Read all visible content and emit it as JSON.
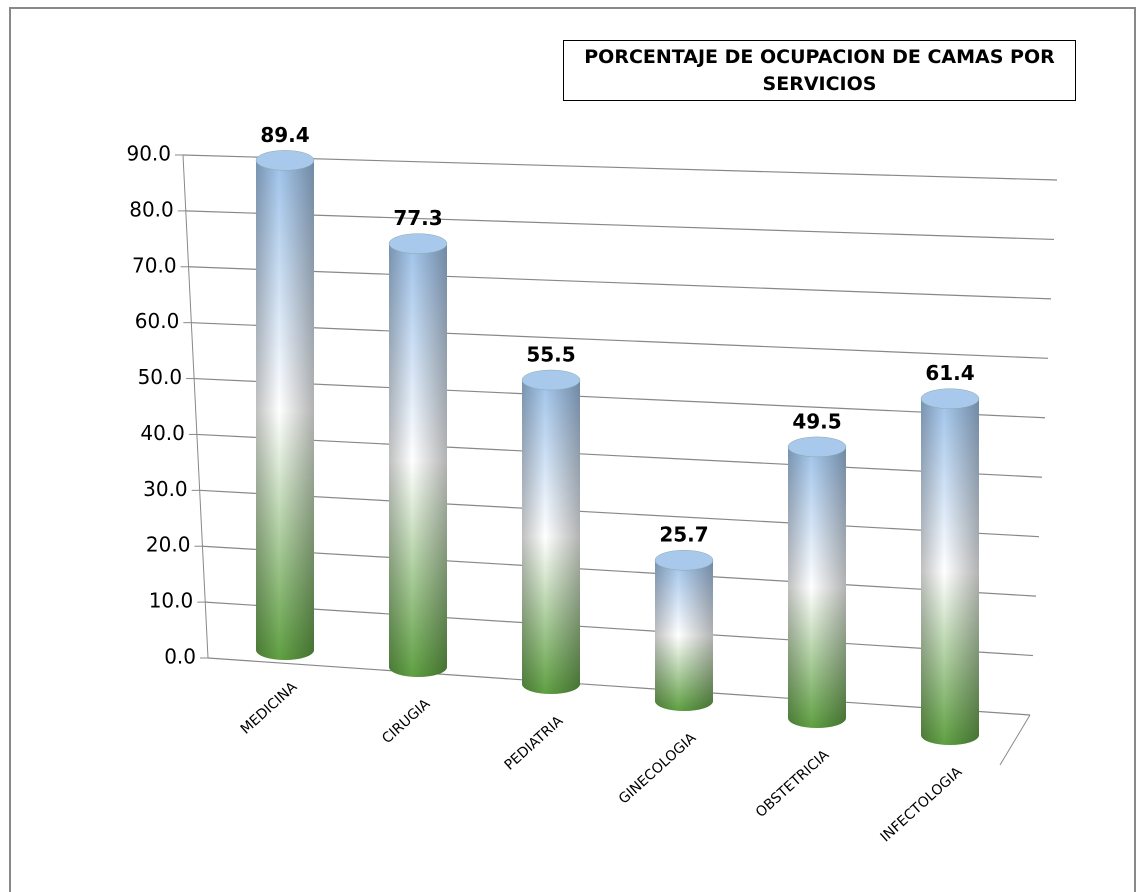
{
  "chart_data": {
    "type": "bar3d",
    "title": "PORCENTAJE DE OCUPACION DE CAMAS POR SERVICIOS",
    "categories": [
      "MEDICINA",
      "CIRUGIA",
      "PEDIATRIA",
      "GINECOLOGIA",
      "OBSTETRICIA",
      "INFECTOLOGIA"
    ],
    "values": [
      89.4,
      77.3,
      55.5,
      25.7,
      49.5,
      61.4
    ],
    "ylim": [
      0,
      90
    ],
    "yticks": [
      {
        "value": 0,
        "label": "0.0"
      },
      {
        "value": 10,
        "label": "10.0"
      },
      {
        "value": 20,
        "label": "20.0"
      },
      {
        "value": 30,
        "label": "30.0"
      },
      {
        "value": 40,
        "label": "40.0"
      },
      {
        "value": 50,
        "label": "50.0"
      },
      {
        "value": 60,
        "label": "60.0"
      },
      {
        "value": 70,
        "label": "70.0"
      },
      {
        "value": 80,
        "label": "80.0"
      },
      {
        "value": 90,
        "label": "90.0"
      }
    ],
    "grid": true
  }
}
